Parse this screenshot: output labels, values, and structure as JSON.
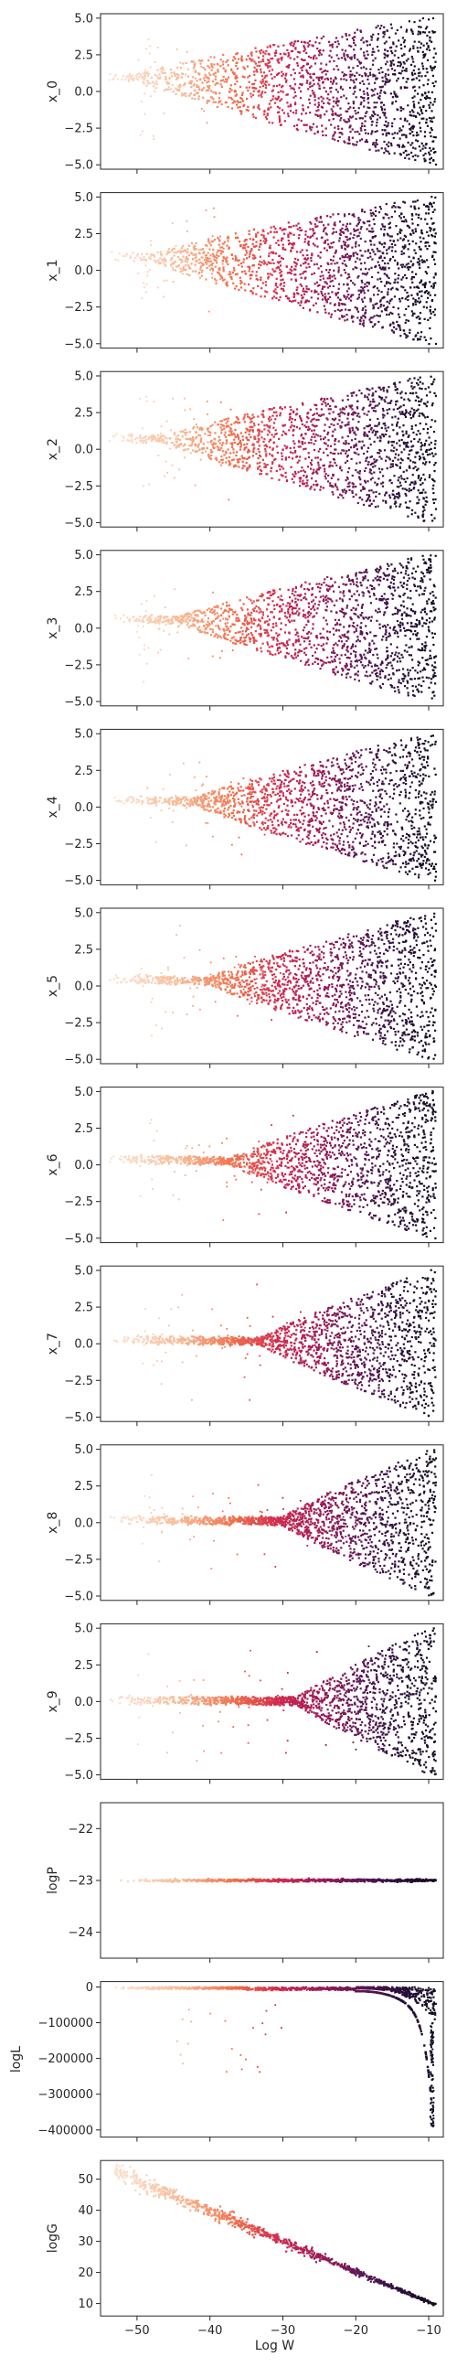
{
  "chart_data": {
    "type": "scatter",
    "description_layout": "13 vertically stacked panels sharing x-axis",
    "x_label": "Log W",
    "x_range": [
      -55,
      -8
    ],
    "x_ticks": [
      -50,
      -40,
      -30,
      -20,
      -10
    ],
    "x_tick_labels": [
      "−50",
      "−40",
      "−30",
      "−20",
      "−10"
    ],
    "colormap": [
      "#fbe3d3",
      "#f7b893",
      "#f1704b",
      "#d0294f",
      "#9a1b56",
      "#5c1654",
      "#2a0f3b",
      "#120c22"
    ],
    "panels": [
      {
        "ylabel": "x_0",
        "ylim": [
          -5.3,
          5.3
        ],
        "yticks": [
          5.0,
          2.5,
          0.0,
          -2.5,
          -5.0
        ],
        "ytick_labels": [
          "5.0",
          "2.5",
          "0.0",
          "−2.5",
          "−5.0"
        ],
        "center_y": 1.0,
        "pattern": "funnel",
        "onset": -50
      },
      {
        "ylabel": "x_1",
        "ylim": [
          -5.3,
          5.3
        ],
        "yticks": [
          5.0,
          2.5,
          0.0,
          -2.5,
          -5.0
        ],
        "ytick_labels": [
          "5.0",
          "2.5",
          "0.0",
          "−2.5",
          "−5.0"
        ],
        "center_y": 1.0,
        "pattern": "funnel",
        "onset": -48
      },
      {
        "ylabel": "x_2",
        "ylim": [
          -5.3,
          5.3
        ],
        "yticks": [
          5.0,
          2.5,
          0.0,
          -2.5,
          -5.0
        ],
        "ytick_labels": [
          "5.0",
          "2.5",
          "0.0",
          "−2.5",
          "−5.0"
        ],
        "center_y": 0.8,
        "pattern": "funnel",
        "onset": -46
      },
      {
        "ylabel": "x_3",
        "ylim": [
          -5.3,
          5.3
        ],
        "yticks": [
          5.0,
          2.5,
          0.0,
          -2.5,
          -5.0
        ],
        "ytick_labels": [
          "5.0",
          "2.5",
          "0.0",
          "−2.5",
          "−5.0"
        ],
        "center_y": 0.7,
        "pattern": "funnel",
        "onset": -44
      },
      {
        "ylabel": "x_4",
        "ylim": [
          -5.3,
          5.3
        ],
        "yticks": [
          5.0,
          2.5,
          0.0,
          -2.5,
          -5.0
        ],
        "ytick_labels": [
          "5.0",
          "2.5",
          "0.0",
          "−2.5",
          "−5.0"
        ],
        "center_y": 0.5,
        "pattern": "funnel",
        "onset": -42
      },
      {
        "ylabel": "x_5",
        "ylim": [
          -5.3,
          5.3
        ],
        "yticks": [
          5.0,
          2.5,
          0.0,
          -2.5,
          -5.0
        ],
        "ytick_labels": [
          "5.0",
          "2.5",
          "0.0",
          "−2.5",
          "−5.0"
        ],
        "center_y": 0.5,
        "pattern": "funnel",
        "onset": -40
      },
      {
        "ylabel": "x_6",
        "ylim": [
          -5.3,
          5.3
        ],
        "yticks": [
          5.0,
          2.5,
          0.0,
          -2.5,
          -5.0
        ],
        "ytick_labels": [
          "5.0",
          "2.5",
          "0.0",
          "−2.5",
          "−5.0"
        ],
        "center_y": 0.4,
        "pattern": "funnel",
        "onset": -37
      },
      {
        "ylabel": "x_7",
        "ylim": [
          -5.3,
          5.3
        ],
        "yticks": [
          5.0,
          2.5,
          0.0,
          -2.5,
          -5.0
        ],
        "ytick_labels": [
          "5.0",
          "2.5",
          "0.0",
          "−2.5",
          "−5.0"
        ],
        "center_y": 0.3,
        "pattern": "funnel",
        "onset": -33
      },
      {
        "ylabel": "x_8",
        "ylim": [
          -5.3,
          5.3
        ],
        "yticks": [
          5.0,
          2.5,
          0.0,
          -2.5,
          -5.0
        ],
        "ytick_labels": [
          "5.0",
          "2.5",
          "0.0",
          "−2.5",
          "−5.0"
        ],
        "center_y": 0.2,
        "pattern": "funnel",
        "onset": -30
      },
      {
        "ylabel": "x_9",
        "ylim": [
          -5.3,
          5.3
        ],
        "yticks": [
          5.0,
          2.5,
          0.0,
          -2.5,
          -5.0
        ],
        "ytick_labels": [
          "5.0",
          "2.5",
          "0.0",
          "−2.5",
          "−5.0"
        ],
        "center_y": 0.1,
        "pattern": "funnel",
        "onset": -28
      },
      {
        "ylabel": "logP",
        "ylim": [
          -24.5,
          -21.5
        ],
        "yticks": [
          -22,
          -23,
          -24
        ],
        "ytick_labels": [
          "−22",
          "−23",
          "−24"
        ],
        "center_y": -23,
        "pattern": "flat"
      },
      {
        "ylabel": "logL",
        "ylim": [
          -420000,
          15000
        ],
        "yticks": [
          0,
          -100000,
          -200000,
          -300000,
          -400000
        ],
        "ytick_labels": [
          "0",
          "−100000",
          "−200000",
          "−300000",
          "−400000"
        ],
        "center_y": 0,
        "pattern": "drop"
      },
      {
        "ylabel": "logG",
        "ylim": [
          6,
          56
        ],
        "yticks": [
          50,
          40,
          30,
          20,
          10
        ],
        "ytick_labels": [
          "50",
          "40",
          "30",
          "20",
          "10"
        ],
        "center_y": 0,
        "pattern": "linear",
        "line": {
          "x0": -53,
          "y0": 52.5,
          "x1": -9,
          "y1": 9.5
        }
      }
    ]
  }
}
